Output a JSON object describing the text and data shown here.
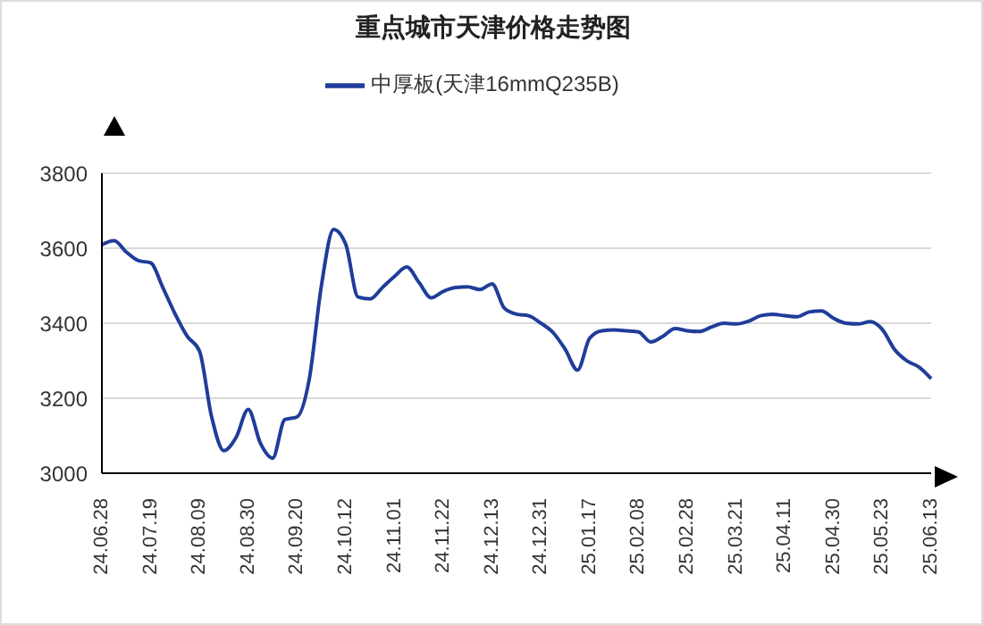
{
  "chart_data": {
    "type": "line",
    "title": "重点城市天津价格走势图",
    "categories": [
      "24.06.28",
      null,
      null,
      null,
      "24.07.19",
      null,
      null,
      null,
      "24.08.09",
      null,
      null,
      null,
      "24.08.30",
      null,
      null,
      null,
      "24.09.20",
      null,
      null,
      null,
      "24.10.12",
      null,
      null,
      null,
      "24.11.01",
      null,
      null,
      null,
      "24.11.22",
      null,
      null,
      null,
      "24.12.13",
      null,
      null,
      null,
      "24.12.31",
      null,
      null,
      null,
      "25.01.17",
      null,
      null,
      null,
      "25.02.08",
      null,
      null,
      null,
      "25.02.28",
      null,
      null,
      null,
      "25.03.21",
      null,
      null,
      null,
      "25.04.11",
      null,
      null,
      null,
      "25.04.30",
      null,
      null,
      null,
      "25.05.23",
      null,
      null,
      null,
      "25.06.13"
    ],
    "series": [
      {
        "name": "中厚板(天津16mmQ235B)",
        "color": "#1f3d99",
        "values": [
          3609,
          3620,
          3590,
          3567,
          3561,
          3495,
          3425,
          3365,
          3326,
          3150,
          3060,
          3095,
          3170,
          3080,
          3040,
          3143,
          3150,
          3250,
          3500,
          3650,
          3610,
          3470,
          3465,
          3495,
          3525,
          3550,
          3509,
          3468,
          3485,
          3495,
          3497,
          3490,
          3505,
          3440,
          3424,
          3420,
          3400,
          3375,
          3330,
          3275,
          3360,
          3380,
          3382,
          3380,
          3377,
          3350,
          3365,
          3386,
          3380,
          3378,
          3390,
          3400,
          3398,
          3405,
          3420,
          3424,
          3420,
          3417,
          3430,
          3433,
          3413,
          3400,
          3398,
          3404,
          3383,
          3330,
          3300,
          3283,
          3252
        ]
      }
    ],
    "ylim": [
      3000,
      3800
    ],
    "yticks": [
      3000,
      3200,
      3400,
      3600,
      3800
    ],
    "grid": "y",
    "legend": "top",
    "marker": "none",
    "line_style": "solid"
  }
}
